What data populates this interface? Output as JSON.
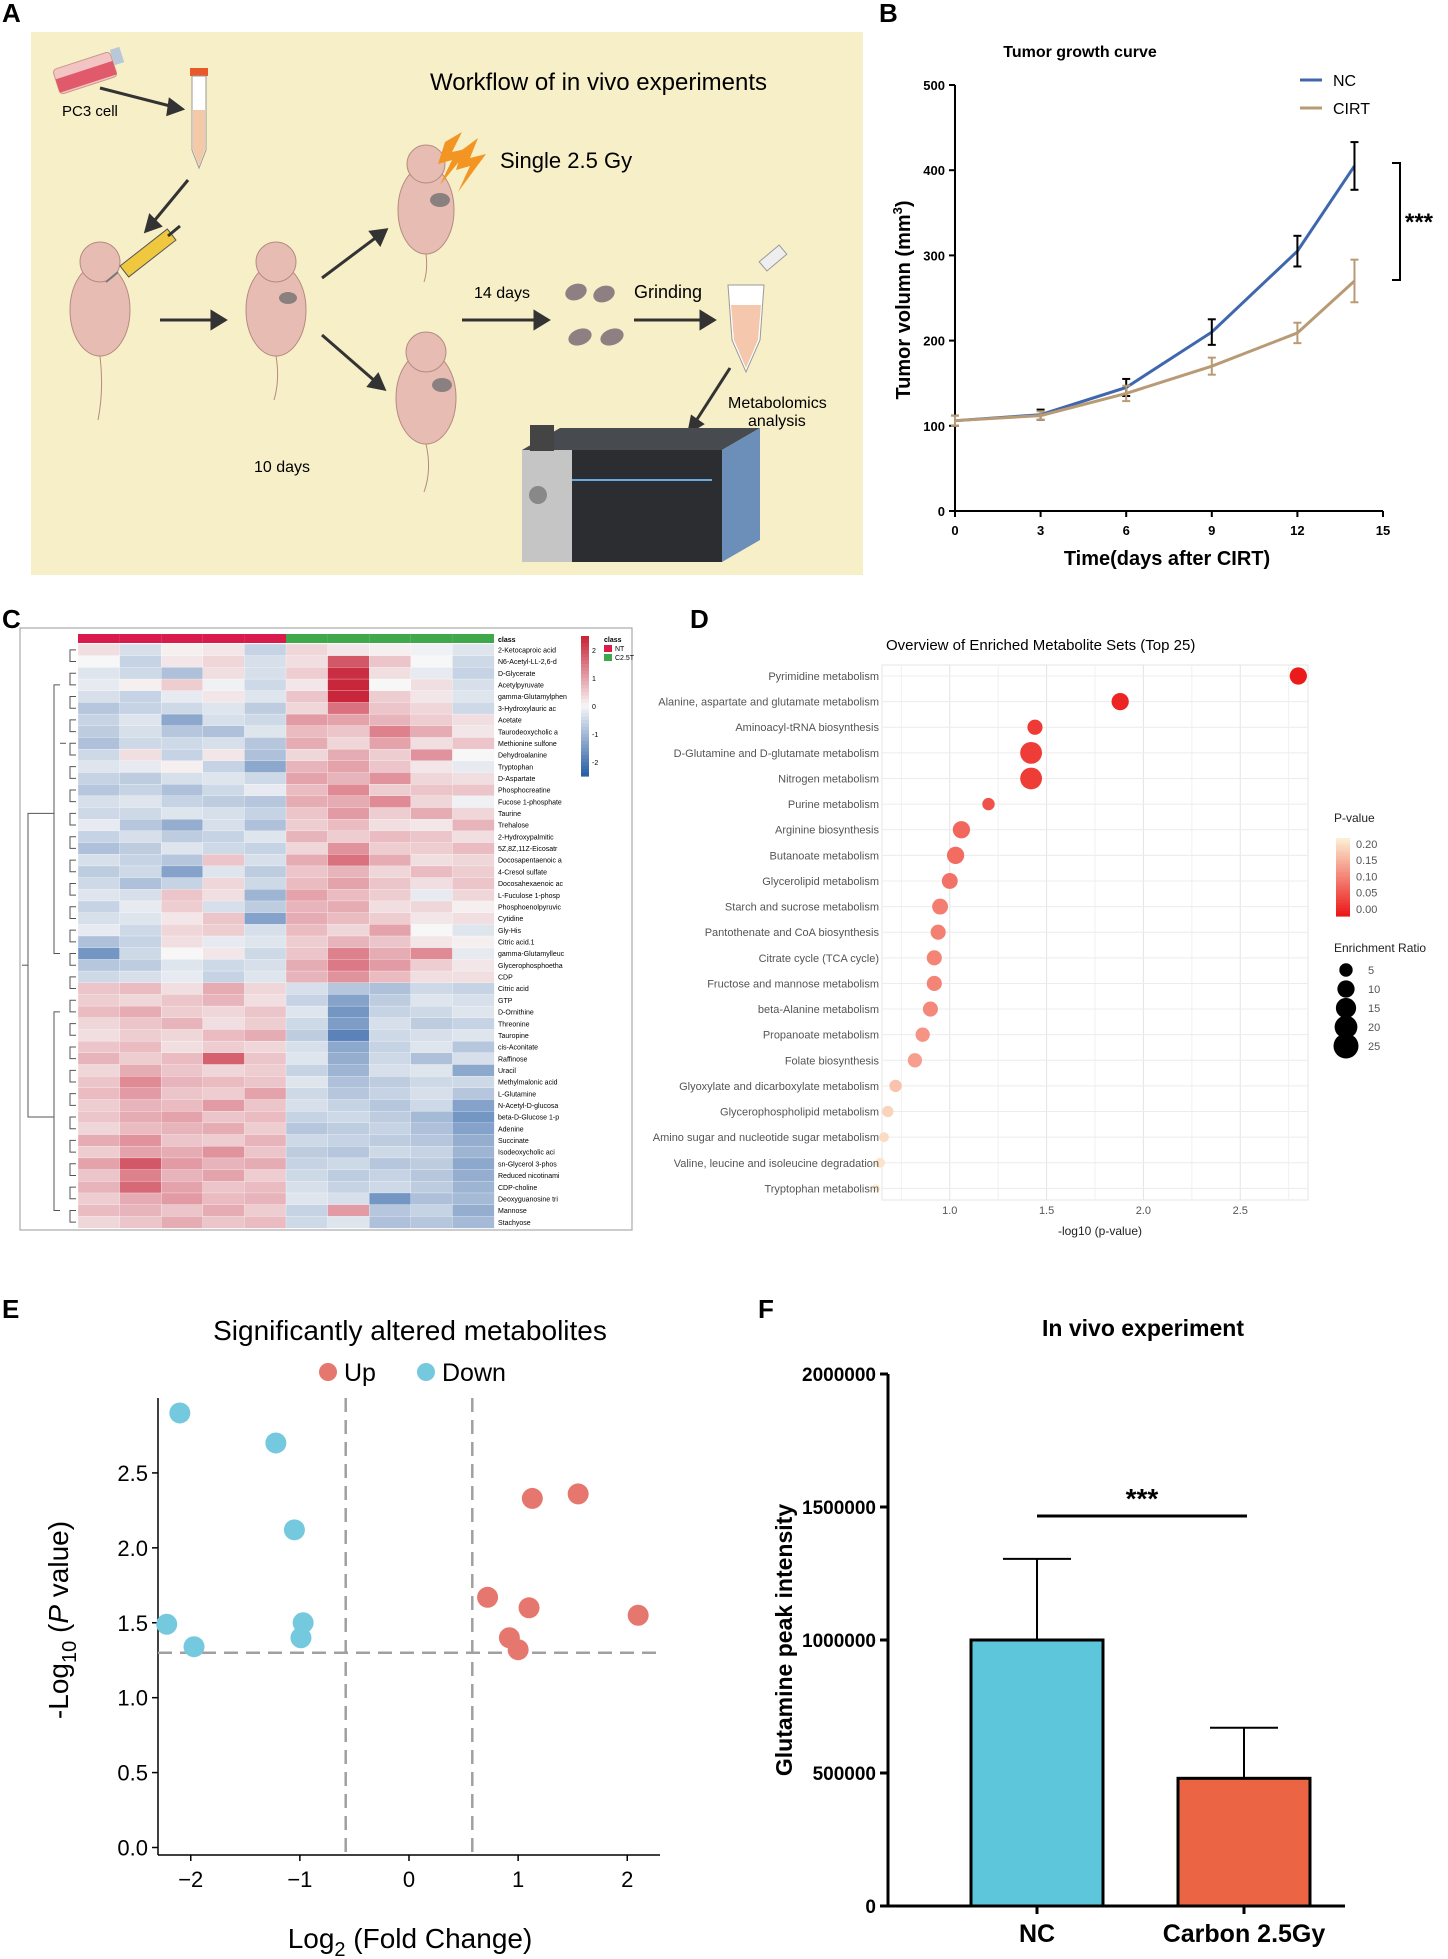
{
  "colors": {
    "workflow_bg": "#f7efc8",
    "nc_line": "#3f67ad",
    "cirt_line": "#b89b74",
    "up": "#e5776f",
    "down": "#75c9de",
    "bar_nc": "#5ec6da",
    "bar_carbon": "#eb6545",
    "heat_low": "#2b5fa6",
    "heat_mid": "#f7f7f7",
    "heat_high": "#c8263a",
    "class_nt": "#d81b4a",
    "class_c25t": "#3ea84b"
  },
  "panels": {
    "A": {
      "label": "A",
      "title": "Workflow of in vivo experiments",
      "pc3": "PC3 cell",
      "single": "Single 2.5 Gy",
      "days14": "14 days",
      "grinding": "Grinding",
      "metab1": "Metabolomics",
      "metab2": "analysis",
      "days10": "10 days"
    },
    "B": {
      "label": "B",
      "title": "Tumor growth curve",
      "sig": "***"
    },
    "C": {
      "label": "C"
    },
    "D": {
      "label": "D"
    },
    "E": {
      "label": "E"
    },
    "F": {
      "label": "F",
      "sig": "***"
    }
  },
  "chart_data": [
    {
      "id": "B",
      "type": "line",
      "title": "Tumor growth curve",
      "xlabel": "Time(days after CIRT)",
      "ylabel": "Tumor volumn (mm³)",
      "ylabel_main": "Tumor volumn (mm",
      "ylabel_sup": "3",
      "ylabel_close": ")",
      "xlim": [
        0,
        15
      ],
      "ylim": [
        0,
        500
      ],
      "xticks": [
        0,
        3,
        6,
        9,
        12,
        15
      ],
      "yticks": [
        0,
        100,
        200,
        300,
        400,
        500
      ],
      "x": [
        0,
        3,
        6,
        9,
        12,
        14
      ],
      "series": [
        {
          "name": "NC",
          "color": "#3f67ad",
          "values": [
            106,
            113,
            145,
            210,
            305,
            405
          ],
          "err": [
            6,
            6,
            10,
            15,
            18,
            28
          ]
        },
        {
          "name": "CIRT",
          "color": "#b89b74",
          "values": [
            106,
            112,
            138,
            170,
            209,
            270
          ],
          "err": [
            6,
            5,
            9,
            10,
            12,
            25
          ]
        }
      ],
      "annotation": "***"
    },
    {
      "id": "C",
      "type": "heatmap",
      "legend_title": "class",
      "legend_classes": [
        "NT",
        "C2.5T"
      ],
      "color_scale_ticks": [
        2,
        1,
        0,
        -1,
        -2
      ],
      "columns": 10,
      "rows": [
        "2-Ketocaproic acid",
        "N6-Acetyl-LL-2,6-d",
        "D-Glycerate",
        "Acetylpyruvate",
        "gamma-Glutamylphen",
        "3-Hydroxylauric ac",
        "Acetate",
        "Taurodeoxycholic a",
        "Methionine sulfone",
        "Dehydroalanine",
        "Tryptophan",
        "D-Aspartate",
        "Phosphocreatine",
        "Fucose 1-phosphate",
        "Taurine",
        "Trehalose",
        "2-Hydroxypalmitic",
        "5Z,8Z,11Z-Eicosatr",
        "Docosapentaenoic a",
        "4-Cresol sulfate",
        "Docosahexaenoic ac",
        "L-Fuculose 1-phosp",
        "Phosphoenolpyruvic",
        "Cytidine",
        "Gly-His",
        "Citric acid.1",
        "gamma-Glutamylleuc",
        "Glycerophosphoetha",
        "CDP",
        "Citric acid",
        "GTP",
        "D-Ornithine",
        "Threonine",
        "Tauropine",
        "cis-Aconitate",
        "Raffinose",
        "Uracil",
        "Methylmalonic acid",
        "L-Glutamine",
        "N-Acetyl-D-glucosa",
        "beta-D-Glucose 1-p",
        "Adenine",
        "Succinate",
        "Isodeoxycholic aci",
        "sn-Glycerol 3-phos",
        "Reduced nicotinami",
        "CDP-choline",
        "Deoxyguanosine tri",
        "Mannose",
        "Stachyose"
      ],
      "values": [
        [
          0.3,
          -0.4,
          0.1,
          0.2,
          -0.6,
          0.4,
          0.2,
          0.1,
          -0.1,
          -0.3
        ],
        [
          0.0,
          -0.6,
          0.2,
          0.4,
          -0.4,
          0.3,
          1.9,
          0.6,
          0.0,
          -0.5
        ],
        [
          -0.3,
          -0.5,
          -0.9,
          0.3,
          -0.4,
          0.5,
          2.4,
          0.3,
          -0.2,
          -0.6
        ],
        [
          -0.2,
          0.1,
          0.5,
          -0.1,
          -0.5,
          0.2,
          2.6,
          0.0,
          0.3,
          -0.4
        ],
        [
          -0.4,
          -0.6,
          -0.2,
          0.2,
          -0.3,
          0.6,
          2.8,
          0.5,
          0.2,
          -0.3
        ],
        [
          -0.8,
          -0.6,
          -0.5,
          -0.3,
          -0.7,
          0.4,
          1.6,
          0.6,
          0.4,
          -0.5
        ],
        [
          -0.6,
          -0.3,
          -1.3,
          -0.4,
          -0.5,
          1.1,
          1.0,
          0.8,
          0.5,
          0.3
        ],
        [
          -0.7,
          -0.4,
          -0.8,
          -0.9,
          -0.3,
          0.7,
          0.6,
          1.4,
          0.9,
          0.2
        ],
        [
          -0.9,
          -0.5,
          -0.5,
          -0.4,
          -0.8,
          0.9,
          0.4,
          1.0,
          0.3,
          0.6
        ],
        [
          -0.5,
          0.3,
          -0.6,
          0.2,
          -0.9,
          0.4,
          0.9,
          0.5,
          1.2,
          0.0
        ],
        [
          -0.3,
          -0.2,
          0.1,
          -0.6,
          -1.3,
          0.8,
          1.0,
          0.6,
          0.2,
          -0.2
        ],
        [
          -0.6,
          -0.7,
          -0.4,
          -0.3,
          -0.5,
          1.0,
          0.8,
          1.2,
          0.4,
          0.3
        ],
        [
          -0.8,
          -0.6,
          -0.9,
          -0.5,
          -0.2,
          0.7,
          1.3,
          0.5,
          0.6,
          0.6
        ],
        [
          -0.4,
          -0.3,
          -0.6,
          -0.7,
          -0.8,
          0.9,
          0.9,
          1.3,
          0.4,
          -0.1
        ],
        [
          -0.5,
          -0.5,
          -0.3,
          -0.4,
          -0.6,
          0.6,
          1.1,
          0.5,
          0.9,
          0.4
        ],
        [
          -0.2,
          -0.8,
          -1.2,
          -0.4,
          -0.9,
          0.5,
          0.7,
          0.3,
          0.2,
          0.8
        ],
        [
          -0.6,
          -0.4,
          -0.7,
          -0.6,
          -0.3,
          0.8,
          0.5,
          0.7,
          0.6,
          0.3
        ],
        [
          -0.9,
          -0.7,
          -0.3,
          -0.5,
          -0.6,
          0.4,
          1.2,
          0.5,
          0.5,
          0.7
        ],
        [
          -0.4,
          -0.6,
          -0.8,
          0.6,
          -0.4,
          0.9,
          1.6,
          0.9,
          0.3,
          0.4
        ],
        [
          -0.7,
          -0.5,
          -1.4,
          -0.3,
          -0.7,
          0.6,
          0.8,
          0.4,
          0.7,
          0.5
        ],
        [
          -0.5,
          -0.9,
          -0.6,
          0.4,
          -0.5,
          0.7,
          1.0,
          0.6,
          0.3,
          0.6
        ],
        [
          -0.3,
          -0.4,
          0.6,
          0.3,
          -1.1,
          1.0,
          0.7,
          0.5,
          -0.2,
          0.4
        ],
        [
          -0.6,
          -0.2,
          0.5,
          -0.4,
          -0.7,
          0.8,
          0.9,
          0.3,
          0.4,
          0.1
        ],
        [
          -0.4,
          -0.3,
          0.2,
          0.6,
          -1.4,
          0.9,
          0.7,
          0.5,
          0.2,
          0.3
        ],
        [
          -0.2,
          -0.5,
          0.4,
          0.5,
          -0.4,
          0.7,
          0.4,
          1.0,
          0.0,
          -0.3
        ],
        [
          -0.9,
          -0.6,
          0.3,
          -0.2,
          -0.3,
          0.5,
          0.8,
          0.6,
          0.2,
          0.1
        ],
        [
          -1.6,
          -0.5,
          0.0,
          0.2,
          -0.5,
          0.6,
          1.4,
          0.9,
          1.3,
          -0.2
        ],
        [
          -0.8,
          -0.7,
          -0.3,
          -0.5,
          -0.4,
          0.9,
          1.5,
          1.1,
          0.5,
          0.2
        ],
        [
          -0.5,
          -0.4,
          -0.2,
          -0.6,
          -0.3,
          0.8,
          1.2,
          0.7,
          0.3,
          0.3
        ],
        [
          0.6,
          0.7,
          0.3,
          0.9,
          0.4,
          -0.4,
          -0.8,
          -0.9,
          -0.5,
          -0.6
        ],
        [
          0.5,
          0.4,
          0.6,
          0.8,
          0.3,
          -0.6,
          -1.4,
          -0.7,
          -0.3,
          -0.4
        ],
        [
          0.7,
          0.9,
          0.5,
          0.4,
          0.6,
          -0.3,
          -1.6,
          -0.6,
          -0.5,
          -0.3
        ],
        [
          0.4,
          0.6,
          0.8,
          0.3,
          0.5,
          -0.5,
          -1.5,
          -0.4,
          -0.7,
          -0.6
        ],
        [
          0.3,
          0.5,
          0.4,
          0.7,
          0.9,
          -0.7,
          -1.9,
          -0.5,
          -0.4,
          -0.3
        ],
        [
          0.6,
          0.7,
          0.3,
          0.5,
          0.4,
          -0.4,
          -1.3,
          -0.6,
          -0.3,
          -0.8
        ],
        [
          0.8,
          0.5,
          0.7,
          1.8,
          0.6,
          -0.3,
          -1.2,
          -0.5,
          -0.9,
          -0.4
        ],
        [
          0.4,
          0.9,
          0.6,
          0.4,
          0.5,
          -0.6,
          -1.1,
          -0.4,
          -0.3,
          -1.3
        ],
        [
          0.6,
          1.3,
          0.8,
          0.7,
          0.6,
          -0.3,
          -0.9,
          -0.7,
          -0.5,
          -0.5
        ],
        [
          0.7,
          1.1,
          0.6,
          0.5,
          1.0,
          -0.5,
          -0.8,
          -0.6,
          -0.4,
          -0.8
        ],
        [
          0.5,
          0.8,
          0.7,
          1.1,
          0.6,
          -0.4,
          -0.6,
          -0.8,
          -0.5,
          -1.4
        ],
        [
          0.6,
          0.9,
          1.0,
          0.6,
          0.7,
          -0.6,
          -0.5,
          -0.7,
          -1.0,
          -1.6
        ],
        [
          0.4,
          0.7,
          0.8,
          0.9,
          0.5,
          -0.8,
          -0.7,
          -0.6,
          -0.9,
          -1.4
        ],
        [
          0.9,
          1.2,
          0.6,
          0.5,
          0.8,
          -0.5,
          -0.6,
          -0.7,
          -0.8,
          -1.2
        ],
        [
          0.5,
          1.0,
          0.9,
          1.2,
          0.6,
          -0.7,
          -0.8,
          -0.5,
          -0.6,
          -1.1
        ],
        [
          1.0,
          1.9,
          1.1,
          0.8,
          0.9,
          -0.6,
          -0.5,
          -0.8,
          -0.7,
          -1.3
        ],
        [
          0.6,
          1.4,
          0.8,
          1.0,
          0.5,
          -0.5,
          -0.7,
          -0.6,
          -0.8,
          -1.2
        ],
        [
          0.8,
          1.7,
          1.0,
          0.6,
          0.7,
          -0.4,
          -0.6,
          -0.5,
          -0.7,
          -1.1
        ],
        [
          0.5,
          0.9,
          1.1,
          0.7,
          0.8,
          -0.3,
          -0.4,
          -1.6,
          -0.9,
          -1.0
        ],
        [
          0.7,
          0.8,
          0.6,
          0.9,
          0.5,
          -0.6,
          1.1,
          -0.8,
          -0.6,
          -1.2
        ],
        [
          0.4,
          0.6,
          0.9,
          0.6,
          0.7,
          -0.5,
          -0.3,
          -0.9,
          -0.8,
          -1.0
        ]
      ]
    },
    {
      "id": "D",
      "type": "scatter",
      "title": "Overview of Enriched Metabolite Sets (Top 25)",
      "xlabel": "-log10 (p-value)",
      "xticks": [
        1.0,
        1.5,
        2.0,
        2.5
      ],
      "xlim": [
        0.65,
        2.85
      ],
      "pathways": [
        "Pyrimidine metabolism",
        "Alanine, aspartate and glutamate metabolism",
        "Aminoacyl-tRNA biosynthesis",
        "D-Glutamine and D-glutamate metabolism",
        "Nitrogen metabolism",
        "Purine metabolism",
        "Arginine biosynthesis",
        "Butanoate metabolism",
        "Glycerolipid metabolism",
        "Starch and sucrose metabolism",
        "Pantothenate and CoA biosynthesis",
        "Citrate cycle (TCA cycle)",
        "Fructose and mannose metabolism",
        "beta-Alanine metabolism",
        "Propanoate metabolism",
        "Folate biosynthesis",
        "Glyoxylate and dicarboxylate metabolism",
        "Glycerophospholipid metabolism",
        "Amino sugar and nucleotide sugar metabolism",
        "Valine, leucine and isoleucine degradation",
        "Tryptophan metabolism"
      ],
      "x": [
        2.8,
        1.88,
        1.44,
        1.42,
        1.42,
        1.2,
        1.06,
        1.03,
        1.0,
        0.95,
        0.94,
        0.92,
        0.92,
        0.9,
        0.86,
        0.82,
        0.72,
        0.68,
        0.66,
        0.64,
        0.62
      ],
      "pvalue": [
        0.0016,
        0.013,
        0.036,
        0.038,
        0.038,
        0.063,
        0.087,
        0.093,
        0.1,
        0.112,
        0.115,
        0.12,
        0.12,
        0.126,
        0.138,
        0.151,
        0.19,
        0.209,
        0.219,
        0.229,
        0.24
      ],
      "enrichment_ratio": [
        10,
        10,
        7,
        18,
        18,
        4,
        10,
        10,
        8,
        8,
        7,
        7,
        7,
        7,
        6,
        6,
        4,
        3,
        2,
        2,
        1
      ],
      "legend_pvalue_title": "P-value",
      "legend_pvalue_ticks": [
        "0.20",
        "0.15",
        "0.10",
        "0.05",
        "0.00"
      ],
      "legend_size_title": "Enrichment Ratio",
      "legend_size_ticks": [
        5,
        10,
        15,
        20,
        25
      ]
    },
    {
      "id": "E",
      "type": "scatter",
      "title": "Significantly altered metabolites",
      "xlabel_main": "Log",
      "xlabel_sub": "2",
      "xlabel_rest": " (Fold Change)",
      "ylabel_main": "-Log",
      "ylabel_sub": "10",
      "ylabel_rest1": " (",
      "ylabel_italic": "P",
      "ylabel_rest2": " value)",
      "xlim": [
        -2.3,
        2.3
      ],
      "ylim": [
        -0.05,
        3.0
      ],
      "xticks": [
        -2,
        -1,
        0,
        1,
        2
      ],
      "yticks": [
        0.0,
        0.5,
        1.0,
        1.5,
        2.0,
        2.5
      ],
      "thresholds": {
        "x": [
          -0.58,
          0.58
        ],
        "y": 1.3
      },
      "series": [
        {
          "name": "Up",
          "color": "#e5776f",
          "x": [
            0.72,
            1.13,
            1.55,
            1.1,
            0.92,
            1.0,
            2.1
          ],
          "y": [
            1.67,
            2.33,
            2.36,
            1.6,
            1.4,
            1.32,
            1.55
          ]
        },
        {
          "name": "Down",
          "color": "#75c9de",
          "x": [
            -2.1,
            -1.22,
            -1.05,
            -2.22,
            -1.97,
            -0.97,
            -0.99
          ],
          "y": [
            2.9,
            2.7,
            2.12,
            1.49,
            1.34,
            1.5,
            1.4
          ]
        }
      ]
    },
    {
      "id": "F",
      "type": "bar",
      "title": "In vivo experiment",
      "ylabel": "Glutamine peak intensity",
      "categories": [
        "NC",
        "Carbon 2.5Gy"
      ],
      "values": [
        1000000,
        480000
      ],
      "err": [
        305000,
        190000
      ],
      "colors": [
        "#5ec6da",
        "#eb6545"
      ],
      "ylim": [
        0,
        2000000
      ],
      "yticks": [
        0,
        500000,
        1000000,
        1500000,
        2000000
      ],
      "annotation": "***"
    }
  ]
}
